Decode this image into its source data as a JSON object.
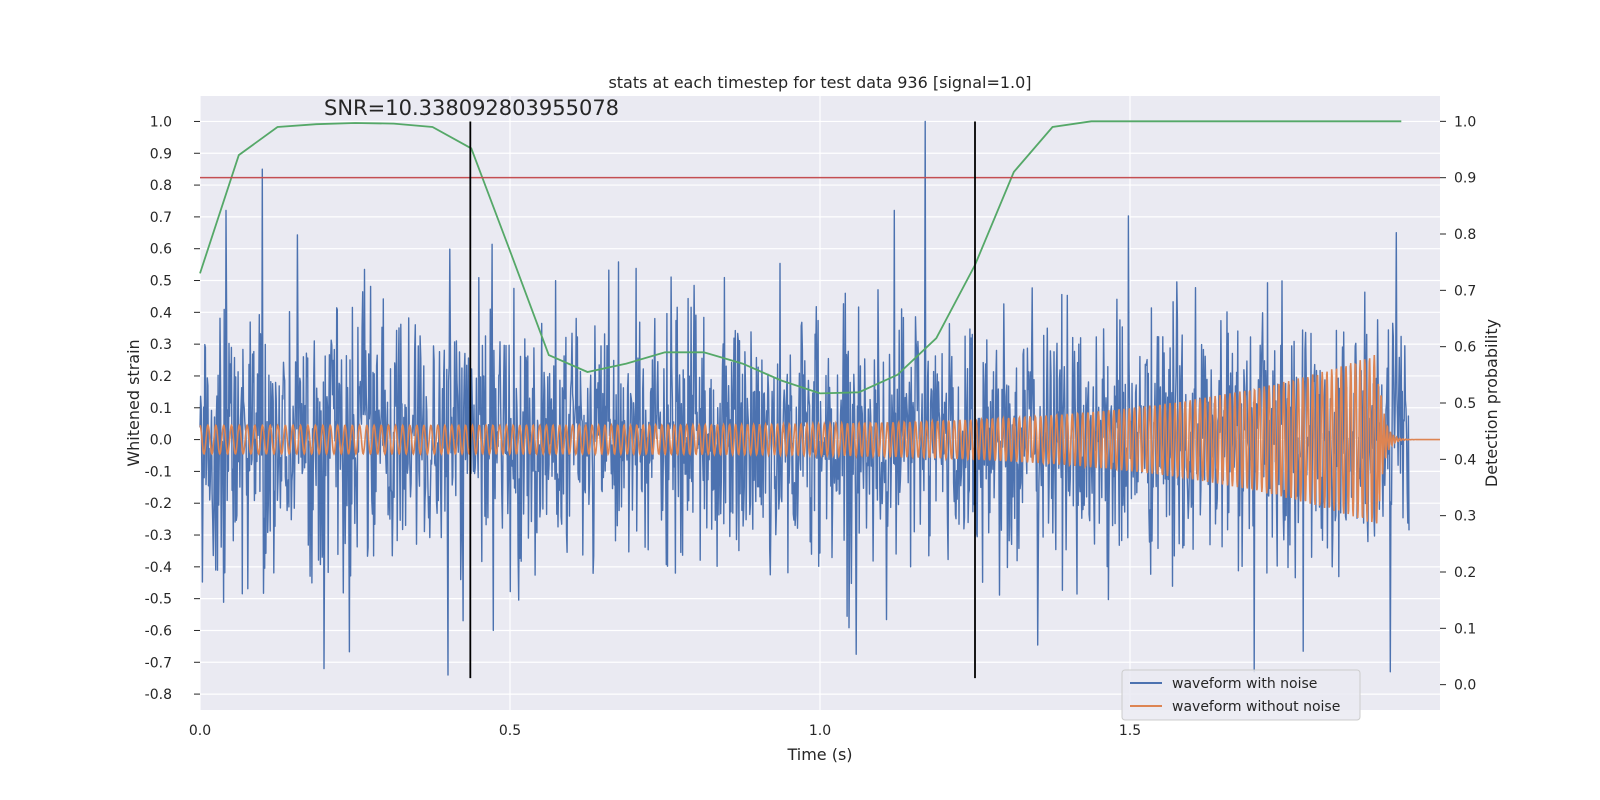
{
  "chart_data": {
    "type": "line",
    "title": "stats at each timestep for test data 936 [signal=1.0]",
    "xlabel": "Time (s)",
    "ylabel": "Whitened strain",
    "y2label": "Detection probability",
    "xlim": [
      0.0,
      2.0
    ],
    "ylim": [
      -0.85,
      1.08
    ],
    "y2lim": [
      -0.045,
      1.045
    ],
    "x_ticks": [
      0.0,
      0.5,
      1.0,
      1.5
    ],
    "x_tick_labels": [
      "0.0",
      "0.5",
      "1.0",
      "1.5"
    ],
    "y_ticks": [
      1.0,
      0.9,
      0.8,
      0.7,
      0.6,
      0.5,
      0.4,
      0.3,
      0.2,
      0.1,
      0.0,
      -0.1,
      -0.2,
      -0.3,
      -0.4,
      -0.5,
      -0.6,
      -0.7,
      -0.8
    ],
    "y_tick_labels": [
      "1.0",
      "0.9",
      "0.8",
      "0.7",
      "0.6",
      "0.5",
      "0.4",
      "0.3",
      "0.2",
      "0.1",
      "0.0",
      "-0.1",
      "-0.2",
      "-0.3",
      "-0.4",
      "-0.5",
      "-0.6",
      "-0.7",
      "-0.8"
    ],
    "y2_ticks": [
      1.0,
      0.9,
      0.8,
      0.7,
      0.6,
      0.5,
      0.4,
      0.3,
      0.2,
      0.1,
      0.0
    ],
    "y2_tick_labels": [
      "1.0",
      "0.9",
      "0.8",
      "0.7",
      "0.6",
      "0.5",
      "0.4",
      "0.3",
      "0.2",
      "0.1",
      "0.0"
    ],
    "grid": true,
    "annotation": "SNR=10.338092803955078",
    "annotation_x": 0.2,
    "annotation_y": 1.02,
    "threshold": {
      "value": 0.9,
      "axis": "right",
      "color": "#c44e52"
    },
    "vlines": [
      {
        "x": 0.436,
        "ymin": -0.75,
        "ymax": 1.0
      },
      {
        "x": 1.25,
        "ymin": -0.75,
        "ymax": 1.0
      }
    ],
    "series": [
      {
        "name": "waveform with noise",
        "color": "#4c72b0",
        "axis": "left",
        "kind": "noise",
        "n_points": 2000,
        "x_range": [
          0.0,
          1.95
        ],
        "amplitude_std": 0.2,
        "peaks": [
          {
            "x": 0.1,
            "y": 0.85
          },
          {
            "x": 1.17,
            "y": 1.0
          },
          {
            "x": 1.12,
            "y": 0.72
          },
          {
            "x": 0.2,
            "y": -0.72
          },
          {
            "x": 0.4,
            "y": -0.74
          },
          {
            "x": 1.7,
            "y": -0.73
          },
          {
            "x": 1.92,
            "y": -0.73
          }
        ]
      },
      {
        "name": "waveform without noise",
        "color": "#dd8452",
        "axis": "left",
        "kind": "chirp",
        "x_range": [
          0.0,
          1.95
        ],
        "cycles": 148,
        "start_amplitude": 0.045,
        "peak_amplitude": 0.27,
        "merger_x": 1.9,
        "end_x": 2.0
      },
      {
        "name": "detection probability",
        "color": "#55a868",
        "axis": "right",
        "kind": "line",
        "x": [
          0.0,
          0.0625,
          0.125,
          0.1875,
          0.25,
          0.3125,
          0.375,
          0.4375,
          0.5,
          0.5625,
          0.625,
          0.6875,
          0.75,
          0.8125,
          0.875,
          0.9375,
          1.0,
          1.0625,
          1.125,
          1.1875,
          1.25,
          1.3125,
          1.375,
          1.4375,
          1.5,
          1.5625,
          1.625,
          1.6875,
          1.75,
          1.8125,
          1.875,
          1.9375
        ],
        "values": [
          0.73,
          0.94,
          0.99,
          0.995,
          0.997,
          0.996,
          0.99,
          0.952,
          0.77,
          0.585,
          0.555,
          0.57,
          0.59,
          0.59,
          0.57,
          0.54,
          0.517,
          0.519,
          0.55,
          0.615,
          0.745,
          0.91,
          0.99,
          1.0,
          1.0,
          1.0,
          1.0,
          1.0,
          1.0,
          1.0,
          1.0,
          1.0
        ]
      }
    ],
    "legend": {
      "position": "lower-right",
      "entries": [
        {
          "label": "waveform with noise",
          "color": "#4c72b0"
        },
        {
          "label": "waveform without noise",
          "color": "#dd8452"
        }
      ]
    }
  }
}
